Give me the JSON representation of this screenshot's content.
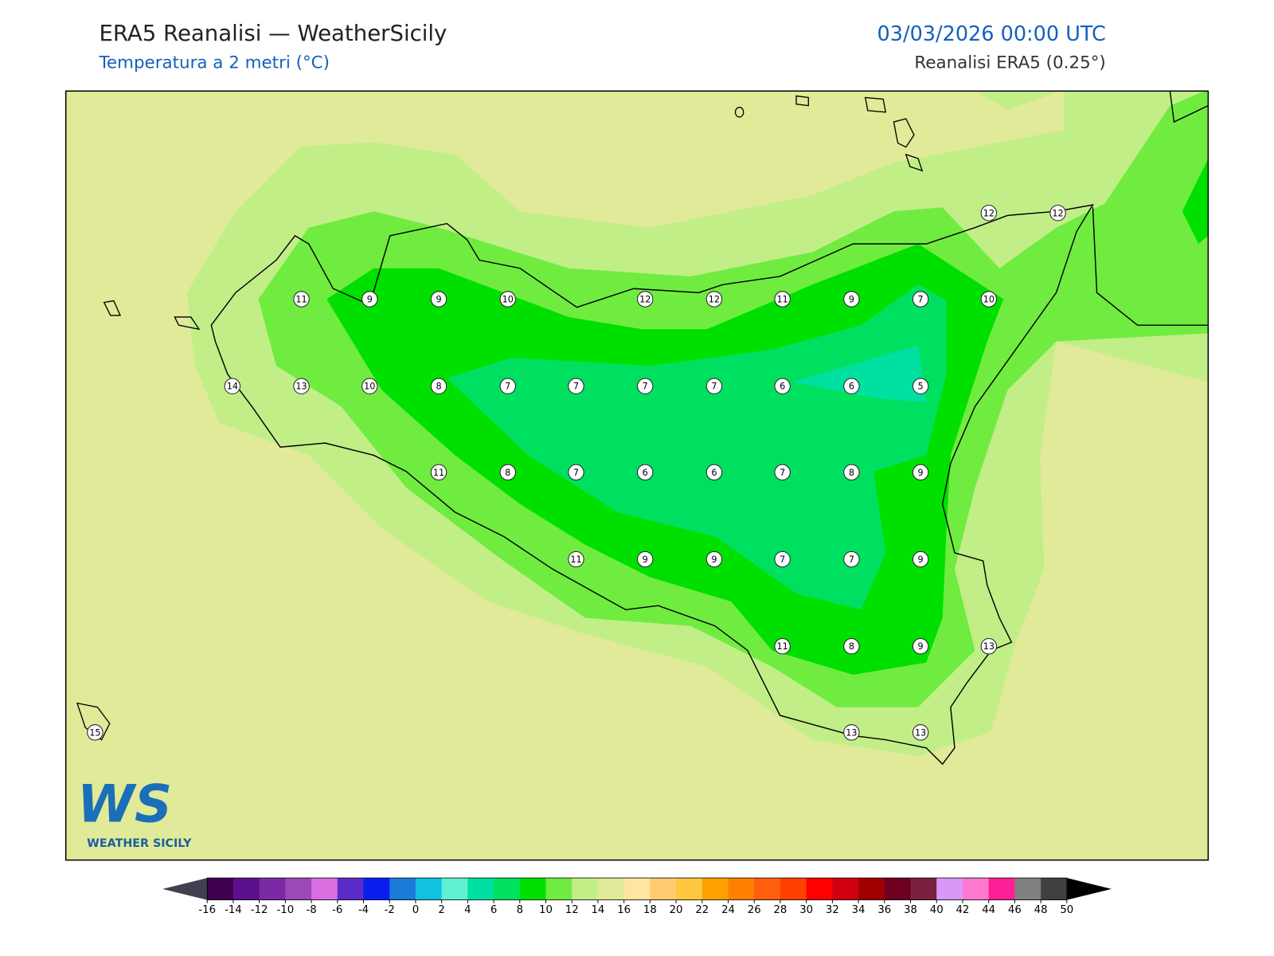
{
  "header": {
    "title": "ERA5 Reanalisi — WeatherSicily",
    "subtitle": "Temperatura a 2 metri (°C)",
    "date": "03/03/2026 00:00 UTC",
    "source": "Reanalisi ERA5 (0.25°)"
  },
  "map": {
    "stations": [
      12,
      12,
      11,
      9,
      9,
      10,
      12,
      12,
      11,
      9,
      7,
      10,
      14,
      13,
      10,
      8,
      7,
      7,
      7,
      7,
      6,
      6,
      5,
      11,
      8,
      7,
      6,
      6,
      7,
      8,
      9,
      11,
      9,
      9,
      7,
      7,
      9,
      11,
      8,
      9,
      13,
      15,
      13,
      13
    ]
  },
  "logo": {
    "mark": "WS",
    "text": "WEATHER SICILY"
  },
  "colorbar": {
    "ticks": [
      -16,
      -14,
      -12,
      -10,
      -8,
      -6,
      -4,
      -2,
      0,
      2,
      4,
      6,
      8,
      10,
      12,
      14,
      16,
      18,
      20,
      22,
      24,
      26,
      28,
      30,
      32,
      34,
      36,
      38,
      40,
      42,
      44,
      46,
      48,
      50
    ],
    "colors": [
      "#400050",
      "#5c0f8a",
      "#7a2aa5",
      "#9b4ab5",
      "#d86ee0",
      "#5a2bc8",
      "#0a1ef0",
      "#1a7ad8",
      "#12c0e0",
      "#5ef0d0",
      "#00e0a0",
      "#00e060",
      "#00e000",
      "#70ec40",
      "#c2ee88",
      "#e0ea98",
      "#ffe6a0",
      "#ffcc70",
      "#ffc840",
      "#ffa000",
      "#ff8000",
      "#ff6010",
      "#ff4000",
      "#ff0000",
      "#d00010",
      "#a00000",
      "#700020",
      "#7a2040",
      "#d898f8",
      "#ff78d0",
      "#ff2098",
      "#808080",
      "#404040"
    ],
    "under_color": "#404050",
    "over_color": "#000000"
  }
}
